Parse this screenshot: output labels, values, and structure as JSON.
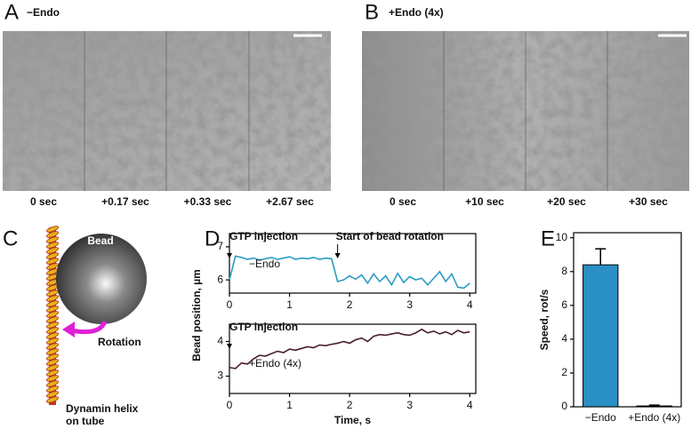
{
  "panels": {
    "A": {
      "letter": "A",
      "title": "−Endo",
      "times": [
        "0 sec",
        "+0.17 sec",
        "+0.33 sec",
        "+2.67 sec"
      ]
    },
    "B": {
      "letter": "B",
      "title": "+Endo (4x)",
      "times": [
        "0 sec",
        "+10 sec",
        "+20 sec",
        "+30 sec"
      ]
    },
    "C": {
      "letter": "C",
      "bead": "Bead",
      "rotation": "Rotation",
      "helix": [
        "Dynamin helix",
        "on tube"
      ]
    },
    "D": {
      "letter": "D",
      "ylabel": "Bead position, µm"
    },
    "E": {
      "letter": "E"
    }
  },
  "chart_data": [
    {
      "type": "line",
      "x": [
        0,
        0.1,
        0.2,
        0.3,
        0.4,
        0.5,
        0.6,
        0.7,
        0.8,
        0.9,
        1,
        1.1,
        1.2,
        1.3,
        1.4,
        1.5,
        1.6,
        1.7,
        1.8,
        1.9,
        2,
        2.1,
        2.2,
        2.3,
        2.4,
        2.5,
        2.6,
        2.7,
        2.8,
        2.9,
        3,
        3.1,
        3.2,
        3.3,
        3.4,
        3.5,
        3.6,
        3.7,
        3.8,
        3.9,
        4
      ],
      "series": [
        {
          "name": "−Endo",
          "color": "#2a9dc2",
          "values": [
            6.0,
            6.72,
            6.68,
            6.62,
            6.66,
            6.6,
            6.64,
            6.68,
            6.62,
            6.66,
            6.7,
            6.62,
            6.66,
            6.64,
            6.68,
            6.62,
            6.66,
            6.64,
            5.95,
            6.0,
            6.12,
            6.02,
            6.15,
            5.9,
            6.18,
            5.95,
            6.12,
            5.85,
            6.2,
            5.92,
            6.1,
            6.0,
            6.05,
            5.85,
            6.05,
            6.25,
            5.95,
            6.18,
            5.78,
            5.75,
            5.9
          ]
        }
      ],
      "annotations": [
        {
          "label": "GTP injection",
          "x": 0
        },
        {
          "label": "Start of bead rotation",
          "x": 1.8
        }
      ],
      "xlim": [
        0,
        4.1
      ],
      "xticks": [
        0,
        1,
        2,
        3,
        4
      ],
      "ylim": [
        5.6,
        7.4
      ],
      "yticks": [
        6,
        7
      ]
    },
    {
      "type": "line",
      "x": [
        0,
        0.1,
        0.2,
        0.3,
        0.4,
        0.5,
        0.6,
        0.7,
        0.8,
        0.9,
        1,
        1.1,
        1.2,
        1.3,
        1.4,
        1.5,
        1.6,
        1.7,
        1.8,
        1.9,
        2,
        2.1,
        2.2,
        2.3,
        2.4,
        2.5,
        2.6,
        2.7,
        2.8,
        2.9,
        3,
        3.1,
        3.2,
        3.3,
        3.4,
        3.5,
        3.6,
        3.7,
        3.8,
        3.9,
        4
      ],
      "series": [
        {
          "name": "+Endo (4x)",
          "color": "#4a1f28",
          "values": [
            3.25,
            3.22,
            3.38,
            3.35,
            3.5,
            3.6,
            3.58,
            3.65,
            3.72,
            3.68,
            3.78,
            3.75,
            3.8,
            3.85,
            3.82,
            3.9,
            3.88,
            3.92,
            3.95,
            4.0,
            3.95,
            4.05,
            4.1,
            4.0,
            4.15,
            4.2,
            4.18,
            4.22,
            4.25,
            4.2,
            4.18,
            4.25,
            4.35,
            4.25,
            4.3,
            4.22,
            4.28,
            4.2,
            4.32,
            4.25,
            4.28
          ]
        }
      ],
      "annotations": [
        {
          "label": "GTP injection",
          "x": 0
        }
      ],
      "xlabel": "Time, s",
      "xlim": [
        0,
        4.1
      ],
      "xticks": [
        0,
        1,
        2,
        3,
        4
      ],
      "ylim": [
        2.5,
        4.5
      ],
      "yticks": [
        3,
        4
      ]
    },
    {
      "type": "bar",
      "categories": [
        "−Endo",
        "+Endo (4x)"
      ],
      "values": [
        8.4,
        0.05
      ],
      "errors": [
        0.95,
        0.05
      ],
      "color": "#2a8fc4",
      "ylabel": "Speed, rot/s",
      "ylim": [
        0,
        10.3
      ],
      "yticks": [
        0,
        2,
        4,
        6,
        8,
        10
      ]
    }
  ]
}
